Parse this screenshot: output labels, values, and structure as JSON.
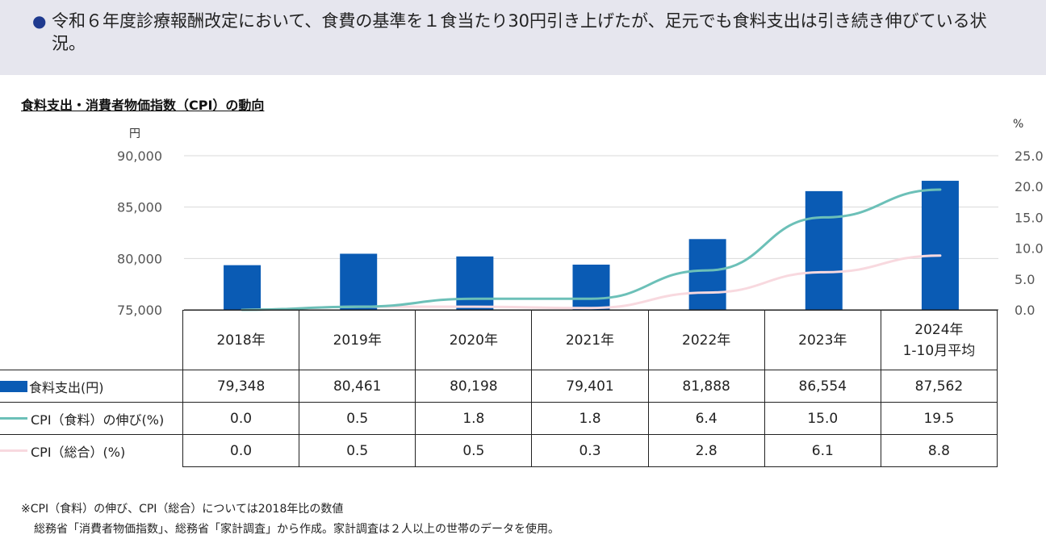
{
  "banner": {
    "bullet": "●",
    "text": "令和６年度診療報酬改定において、食費の基準を１食当たり30円引き上げたが、足元でも食料支出は引き続き伸びている状況。"
  },
  "chart_title": "食料支出・消費者物価指数（CPI）の動向",
  "unit_left": "円",
  "unit_right": "%",
  "chart_data": {
    "type": "bar",
    "categories": [
      "2018年",
      "2019年",
      "2020年",
      "2021年",
      "2022年",
      "2023年",
      "2024年 1-10月平均"
    ],
    "category_lines": [
      [
        "2018年"
      ],
      [
        "2019年"
      ],
      [
        "2020年"
      ],
      [
        "2021年"
      ],
      [
        "2022年"
      ],
      [
        "2023年"
      ],
      [
        "2024年",
        "1-10月平均"
      ]
    ],
    "series": [
      {
        "name": "食料支出(円)",
        "type": "bar",
        "axis": "left",
        "color": "#0a5bb4",
        "values": [
          79348,
          80461,
          80198,
          79401,
          81888,
          86554,
          87562
        ],
        "labels": [
          "79,348",
          "80,461",
          "80,198",
          "79,401",
          "81,888",
          "86,554",
          "87,562"
        ]
      },
      {
        "name": "CPI（食料）の伸び(%)",
        "type": "line",
        "axis": "right",
        "color": "#6cc0b8",
        "values": [
          0.0,
          0.5,
          1.8,
          1.8,
          6.4,
          15.0,
          19.5
        ],
        "labels": [
          "0.0",
          "0.5",
          "1.8",
          "1.8",
          "6.4",
          "15.0",
          "19.5"
        ]
      },
      {
        "name": "CPI（総合）(%)",
        "type": "line",
        "axis": "right",
        "color": "#f8d9df",
        "values": [
          0.0,
          0.5,
          0.5,
          0.3,
          2.8,
          6.1,
          8.8
        ],
        "labels": [
          "0.0",
          "0.5",
          "0.5",
          "0.3",
          "2.8",
          "6.1",
          "8.8"
        ]
      }
    ],
    "ylim_left": [
      75000,
      90000
    ],
    "yticks_left": [
      "90,000",
      "85,000",
      "80,000",
      "75,000"
    ],
    "yticks_left_values": [
      90000,
      85000,
      80000,
      75000
    ],
    "ylim_right": [
      0,
      25
    ],
    "yticks_right": [
      "25.0",
      "20.0",
      "15.0",
      "10.0",
      "5.0",
      "0.0"
    ],
    "yticks_right_values": [
      25,
      20,
      15,
      10,
      5,
      0
    ],
    "grid": true,
    "legend": "data-table"
  },
  "footnotes": [
    "※CPI（食料）の伸び、CPI（総合）については2018年比の数値",
    "総務省「消費者物価指数」、総務省「家計調査」から作成。家計調査は２人以上の世帯のデータを使用。"
  ]
}
